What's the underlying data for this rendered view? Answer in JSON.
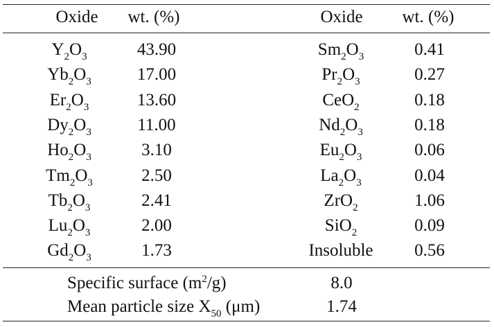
{
  "table": {
    "headers": [
      "Oxide",
      "wt. (%)",
      "Oxide",
      "wt. (%)"
    ],
    "left_rows": [
      {
        "oxide": [
          "Y",
          "2",
          "O",
          "3"
        ],
        "wt": "43.90"
      },
      {
        "oxide": [
          "Yb",
          "2",
          "O",
          "3"
        ],
        "wt": "17.00"
      },
      {
        "oxide": [
          "Er",
          "2",
          "O",
          "3"
        ],
        "wt": "13.60"
      },
      {
        "oxide": [
          "Dy",
          "2",
          "O",
          "3"
        ],
        "wt": "11.00"
      },
      {
        "oxide": [
          "Ho",
          "2",
          "O",
          "3"
        ],
        "wt": "3.10"
      },
      {
        "oxide": [
          "Tm",
          "2",
          "O",
          "3"
        ],
        "wt": "2.50"
      },
      {
        "oxide": [
          "Tb",
          "2",
          "O",
          "3"
        ],
        "wt": "2.41"
      },
      {
        "oxide": [
          "Lu",
          "2",
          "O",
          "3"
        ],
        "wt": "2.00"
      },
      {
        "oxide": [
          "Gd",
          "2",
          "O",
          "3"
        ],
        "wt": "1.73"
      }
    ],
    "right_rows": [
      {
        "oxide": [
          "Sm",
          "2",
          "O",
          "3"
        ],
        "wt": "0.41"
      },
      {
        "oxide": [
          "Pr",
          "2",
          "O",
          "3"
        ],
        "wt": "0.27"
      },
      {
        "oxide": [
          "CeO",
          "2"
        ],
        "wt": "0.18"
      },
      {
        "oxide": [
          "Nd",
          "2",
          "O",
          "3"
        ],
        "wt": "0.18"
      },
      {
        "oxide": [
          "Eu",
          "2",
          "O",
          "3"
        ],
        "wt": "0.06"
      },
      {
        "oxide": [
          "La",
          "2",
          "O",
          "3"
        ],
        "wt": "0.04"
      },
      {
        "oxide": [
          "ZrO",
          "2"
        ],
        "wt": "1.06"
      },
      {
        "oxide": [
          "SiO",
          "2"
        ],
        "wt": "0.09"
      },
      {
        "oxide": [
          "Insoluble"
        ],
        "wt": "0.56"
      }
    ],
    "footer": [
      {
        "label": [
          "Specific surface (m",
          "2",
          "/g)"
        ],
        "label_markup": "sup",
        "value": "8.0"
      },
      {
        "label": [
          "Mean particle size X",
          "50",
          " (μm)"
        ],
        "label_markup": "sub",
        "value": "1.74"
      }
    ]
  }
}
